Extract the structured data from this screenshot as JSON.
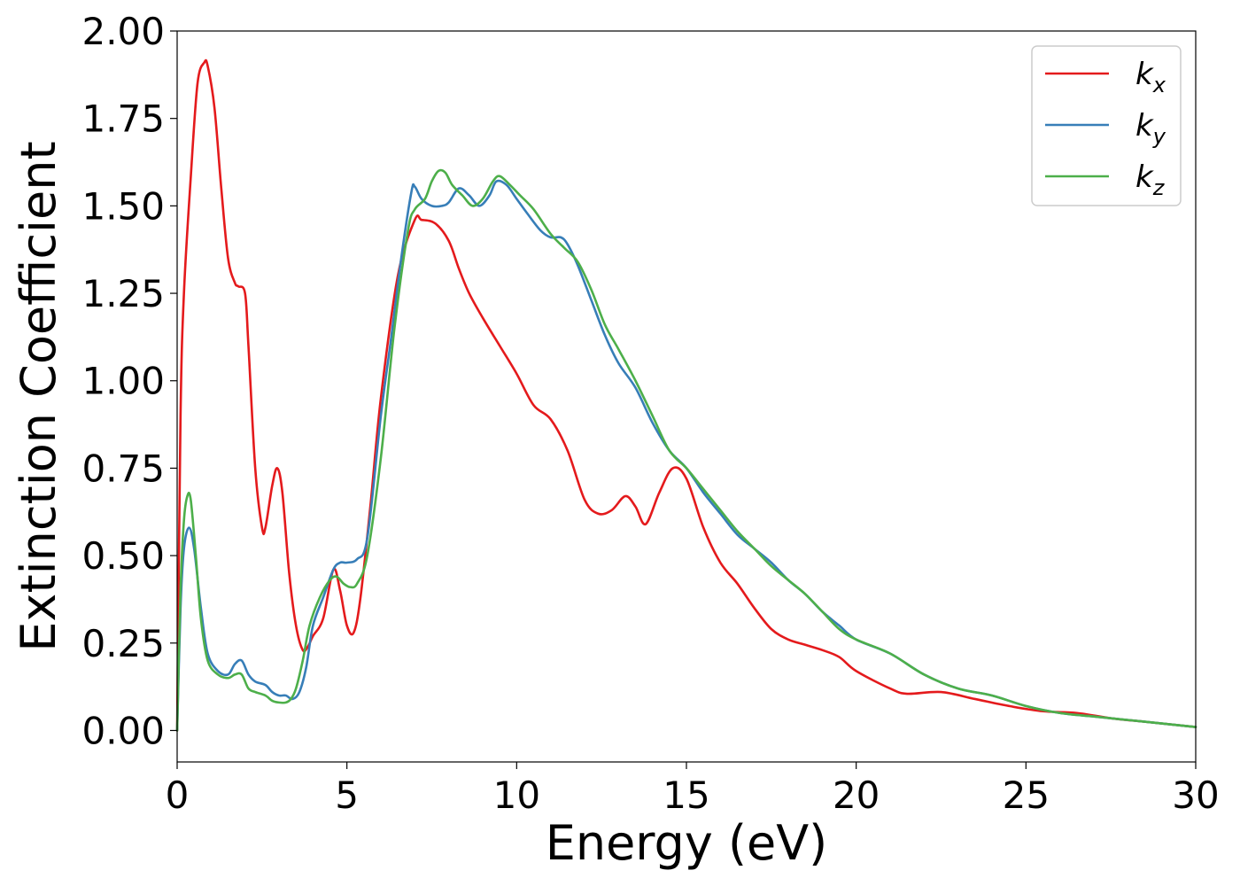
{
  "chart_data": {
    "type": "line",
    "title": "",
    "xlabel": "Energy (eV)",
    "ylabel": "Extinction Coefficient",
    "xlim": [
      0,
      30
    ],
    "ylim": [
      -0.09,
      2.0
    ],
    "xticks": [
      0,
      5,
      10,
      15,
      20,
      25,
      30
    ],
    "xtick_labels": [
      "0",
      "5",
      "10",
      "15",
      "20",
      "25",
      "30"
    ],
    "yticks": [
      0.0,
      0.25,
      0.5,
      0.75,
      1.0,
      1.25,
      1.5,
      1.75,
      2.0
    ],
    "ytick_labels": [
      "0.00",
      "0.25",
      "0.50",
      "0.75",
      "1.00",
      "1.25",
      "1.50",
      "1.75",
      "2.00"
    ],
    "grid": false,
    "legend_position": "top-right",
    "series": [
      {
        "name": "k_x",
        "label_base": "k",
        "label_sub": "x",
        "color": "#e41a1c",
        "x": [
          0,
          0.1,
          0.2,
          0.4,
          0.6,
          0.8,
          0.9,
          1.1,
          1.3,
          1.5,
          1.7,
          1.8,
          2.0,
          2.1,
          2.3,
          2.5,
          2.6,
          2.8,
          2.95,
          3.1,
          3.3,
          3.5,
          3.7,
          3.85,
          4.0,
          4.3,
          4.6,
          4.8,
          5.0,
          5.2,
          5.4,
          5.7,
          6.0,
          6.5,
          7.0,
          7.2,
          7.6,
          8.0,
          8.3,
          8.6,
          9.0,
          9.5,
          10.0,
          10.5,
          11.0,
          11.5,
          12.0,
          12.4,
          12.8,
          13.2,
          13.5,
          13.8,
          14.2,
          14.6,
          15.0,
          15.5,
          16.0,
          16.5,
          17.0,
          17.5,
          18.0,
          18.5,
          19.0,
          19.5,
          20.0,
          21.0,
          21.5,
          22.5,
          23.5,
          24.5,
          25.5,
          26.5,
          27.5,
          28.5,
          29.5,
          30.0
        ],
        "y": [
          0.0,
          0.9,
          1.25,
          1.58,
          1.85,
          1.91,
          1.9,
          1.78,
          1.55,
          1.35,
          1.28,
          1.27,
          1.25,
          1.1,
          0.75,
          0.58,
          0.58,
          0.7,
          0.75,
          0.68,
          0.45,
          0.3,
          0.23,
          0.24,
          0.27,
          0.32,
          0.46,
          0.4,
          0.3,
          0.28,
          0.38,
          0.65,
          0.95,
          1.3,
          1.46,
          1.46,
          1.45,
          1.4,
          1.32,
          1.25,
          1.18,
          1.1,
          1.02,
          0.93,
          0.89,
          0.8,
          0.66,
          0.62,
          0.63,
          0.67,
          0.64,
          0.59,
          0.68,
          0.75,
          0.72,
          0.58,
          0.48,
          0.42,
          0.35,
          0.29,
          0.26,
          0.245,
          0.23,
          0.21,
          0.17,
          0.12,
          0.105,
          0.11,
          0.09,
          0.07,
          0.055,
          0.05,
          0.035,
          0.025,
          0.015,
          0.01
        ]
      },
      {
        "name": "k_y",
        "label_base": "k",
        "label_sub": "y",
        "color": "#377eb8",
        "x": [
          0,
          0.1,
          0.2,
          0.35,
          0.5,
          0.7,
          0.9,
          1.2,
          1.5,
          1.7,
          1.9,
          2.1,
          2.3,
          2.6,
          2.8,
          3.0,
          3.2,
          3.4,
          3.6,
          3.8,
          4.0,
          4.3,
          4.6,
          4.8,
          5.0,
          5.3,
          5.6,
          6.0,
          6.3,
          6.6,
          6.9,
          7.0,
          7.2,
          7.5,
          7.8,
          8.0,
          8.3,
          8.6,
          8.9,
          9.2,
          9.4,
          9.7,
          10.0,
          10.3,
          10.7,
          11.0,
          11.3,
          11.5,
          11.8,
          12.2,
          12.6,
          13.0,
          13.5,
          14.0,
          14.5,
          15.0,
          15.5,
          16.0,
          16.5,
          17.0,
          17.5,
          18.0,
          18.5,
          19.0,
          19.5,
          20.0,
          21.0,
          22.0,
          23.0,
          24.0,
          25.0,
          26.0,
          27.0,
          28.0,
          29.0,
          30.0
        ],
        "y": [
          0.0,
          0.35,
          0.52,
          0.58,
          0.52,
          0.35,
          0.22,
          0.17,
          0.16,
          0.19,
          0.2,
          0.16,
          0.14,
          0.13,
          0.11,
          0.1,
          0.1,
          0.09,
          0.11,
          0.18,
          0.3,
          0.38,
          0.46,
          0.48,
          0.48,
          0.49,
          0.55,
          0.9,
          1.12,
          1.35,
          1.54,
          1.555,
          1.52,
          1.5,
          1.5,
          1.51,
          1.55,
          1.53,
          1.5,
          1.53,
          1.57,
          1.56,
          1.52,
          1.48,
          1.43,
          1.41,
          1.41,
          1.39,
          1.33,
          1.23,
          1.13,
          1.05,
          0.98,
          0.88,
          0.8,
          0.75,
          0.68,
          0.62,
          0.56,
          0.52,
          0.48,
          0.43,
          0.39,
          0.34,
          0.3,
          0.26,
          0.22,
          0.16,
          0.12,
          0.1,
          0.07,
          0.05,
          0.04,
          0.03,
          0.02,
          0.01
        ]
      },
      {
        "name": "k_z",
        "label_base": "k",
        "label_sub": "z",
        "color": "#4daf4a",
        "x": [
          0,
          0.1,
          0.2,
          0.3,
          0.4,
          0.55,
          0.7,
          0.9,
          1.2,
          1.5,
          1.7,
          1.9,
          2.1,
          2.3,
          2.6,
          2.8,
          3.0,
          3.2,
          3.35,
          3.5,
          3.7,
          3.9,
          4.2,
          4.5,
          4.7,
          4.9,
          5.1,
          5.3,
          5.6,
          6.0,
          6.4,
          6.8,
          7.0,
          7.3,
          7.5,
          7.7,
          7.9,
          8.1,
          8.4,
          8.7,
          9.0,
          9.3,
          9.5,
          9.8,
          10.1,
          10.5,
          11.0,
          11.4,
          11.8,
          12.2,
          12.6,
          13.0,
          13.5,
          14.0,
          14.5,
          15.0,
          15.5,
          16.0,
          16.5,
          17.0,
          17.5,
          18.0,
          18.5,
          19.0,
          19.5,
          20.0,
          21.0,
          22.0,
          23.0,
          24.0,
          25.0,
          26.0,
          27.0,
          28.0,
          29.0,
          30.0
        ],
        "y": [
          0.0,
          0.4,
          0.6,
          0.67,
          0.66,
          0.5,
          0.32,
          0.2,
          0.16,
          0.15,
          0.16,
          0.16,
          0.12,
          0.11,
          0.1,
          0.085,
          0.08,
          0.08,
          0.09,
          0.12,
          0.2,
          0.3,
          0.38,
          0.43,
          0.44,
          0.42,
          0.41,
          0.42,
          0.5,
          0.78,
          1.15,
          1.43,
          1.49,
          1.52,
          1.57,
          1.6,
          1.595,
          1.56,
          1.53,
          1.5,
          1.52,
          1.57,
          1.585,
          1.56,
          1.53,
          1.49,
          1.42,
          1.38,
          1.34,
          1.26,
          1.16,
          1.09,
          1.0,
          0.9,
          0.8,
          0.75,
          0.69,
          0.63,
          0.57,
          0.52,
          0.47,
          0.43,
          0.39,
          0.34,
          0.29,
          0.26,
          0.22,
          0.16,
          0.12,
          0.1,
          0.07,
          0.05,
          0.04,
          0.03,
          0.02,
          0.01
        ]
      }
    ]
  }
}
